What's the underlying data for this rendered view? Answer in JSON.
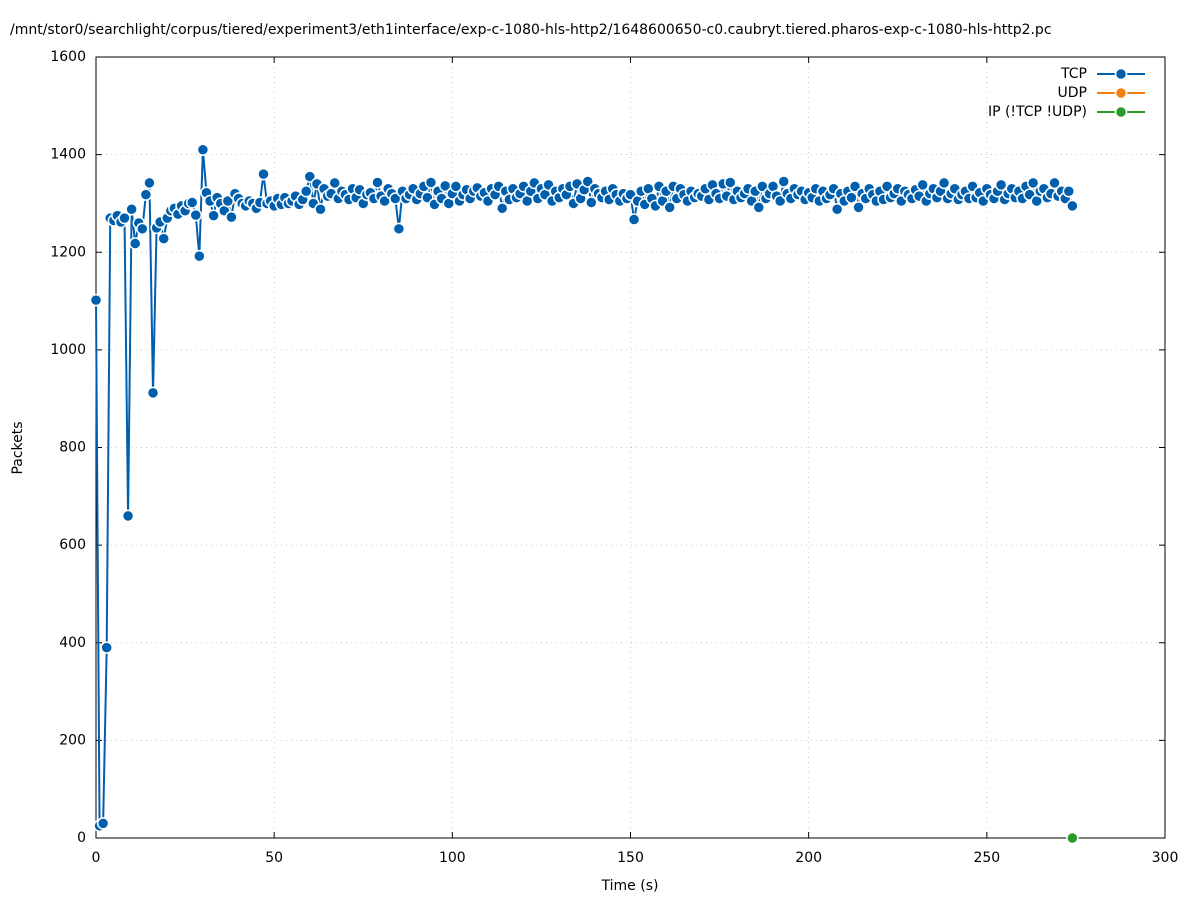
{
  "chart_data": {
    "type": "line",
    "title": "/mnt/stor0/searchlight/corpus/tiered/experiment3/eth1interface/exp-c-1080-hls-http2/1648600650-c0.caubryt.tiered.pharos-exp-c-1080-hls-http2.pc",
    "xlabel": "Time (s)",
    "ylabel": "Packets",
    "xlim": [
      0,
      300
    ],
    "xticks": [
      0,
      50,
      100,
      150,
      200,
      250,
      300
    ],
    "ylim": [
      0,
      1600
    ],
    "yticks": [
      0,
      200,
      400,
      600,
      800,
      1000,
      1200,
      1400,
      1600
    ],
    "grid": true,
    "legend": "top-right",
    "series": [
      {
        "name": "TCP",
        "color": "#005fad",
        "x": [
          0,
          1,
          2,
          3,
          4,
          5,
          6,
          7,
          8,
          9,
          10,
          11,
          12,
          13,
          14,
          15,
          16,
          17,
          18,
          19,
          20,
          21,
          22,
          23,
          24,
          25,
          26,
          27,
          28,
          29,
          30,
          31,
          32,
          33,
          34,
          35,
          36,
          37,
          38,
          39,
          40,
          41,
          42,
          43,
          44,
          45,
          46,
          47,
          48,
          49,
          50,
          51,
          52,
          53,
          54,
          55,
          56,
          57,
          58,
          59,
          60,
          61,
          62,
          63,
          64,
          65,
          66,
          67,
          68,
          69,
          70,
          71,
          72,
          73,
          74,
          75,
          76,
          77,
          78,
          79,
          80,
          81,
          82,
          83,
          84,
          85,
          86,
          87,
          88,
          89,
          90,
          91,
          92,
          93,
          94,
          95,
          96,
          97,
          98,
          99,
          100,
          101,
          102,
          103,
          104,
          105,
          106,
          107,
          108,
          109,
          110,
          111,
          112,
          113,
          114,
          115,
          116,
          117,
          118,
          119,
          120,
          121,
          122,
          123,
          124,
          125,
          126,
          127,
          128,
          129,
          130,
          131,
          132,
          133,
          134,
          135,
          136,
          137,
          138,
          139,
          140,
          141,
          142,
          143,
          144,
          145,
          146,
          147,
          148,
          149,
          150,
          151,
          152,
          153,
          154,
          155,
          156,
          157,
          158,
          159,
          160,
          161,
          162,
          163,
          164,
          165,
          166,
          167,
          168,
          169,
          170,
          171,
          172,
          173,
          174,
          175,
          176,
          177,
          178,
          179,
          180,
          181,
          182,
          183,
          184,
          185,
          186,
          187,
          188,
          189,
          190,
          191,
          192,
          193,
          194,
          195,
          196,
          197,
          198,
          199,
          200,
          201,
          202,
          203,
          204,
          205,
          206,
          207,
          208,
          209,
          210,
          211,
          212,
          213,
          214,
          215,
          216,
          217,
          218,
          219,
          220,
          221,
          222,
          223,
          224,
          225,
          226,
          227,
          228,
          229,
          230,
          231,
          232,
          233,
          234,
          235,
          236,
          237,
          238,
          239,
          240,
          241,
          242,
          243,
          244,
          245,
          246,
          247,
          248,
          249,
          250,
          251,
          252,
          253,
          254,
          255,
          256,
          257,
          258,
          259,
          260,
          261,
          262,
          263,
          264,
          265,
          266,
          267,
          268,
          269,
          270,
          271,
          272,
          273,
          274
        ],
        "values": [
          1102,
          25,
          30,
          390,
          1270,
          1265,
          1275,
          1262,
          1270,
          660,
          1288,
          1218,
          1260,
          1248,
          1318,
          1342,
          912,
          1250,
          1262,
          1228,
          1270,
          1285,
          1290,
          1278,
          1295,
          1285,
          1300,
          1302,
          1276,
          1192,
          1410,
          1322,
          1305,
          1275,
          1312,
          1300,
          1285,
          1305,
          1272,
          1320,
          1310,
          1300,
          1295,
          1305,
          1300,
          1290,
          1302,
          1360,
          1300,
          1305,
          1295,
          1310,
          1298,
          1312,
          1300,
          1305,
          1315,
          1298,
          1308,
          1325,
          1355,
          1300,
          1340,
          1288,
          1330,
          1315,
          1320,
          1342,
          1310,
          1325,
          1318,
          1308,
          1330,
          1312,
          1328,
          1300,
          1318,
          1322,
          1310,
          1343,
          1315,
          1305,
          1330,
          1320,
          1310,
          1248,
          1325,
          1310,
          1318,
          1330,
          1308,
          1320,
          1335,
          1312,
          1343,
          1298,
          1325,
          1310,
          1336,
          1300,
          1320,
          1335,
          1305,
          1318,
          1328,
          1310,
          1325,
          1332,
          1315,
          1322,
          1305,
          1330,
          1318,
          1335,
          1290,
          1325,
          1308,
          1330,
          1312,
          1320,
          1335,
          1305,
          1325,
          1342,
          1310,
          1330,
          1318,
          1338,
          1305,
          1325,
          1312,
          1330,
          1318,
          1335,
          1300,
          1340,
          1310,
          1328,
          1345,
          1302,
          1330,
          1320,
          1312,
          1325,
          1308,
          1330,
          1318,
          1305,
          1320,
          1310,
          1318,
          1267,
          1305,
          1325,
          1298,
          1330,
          1310,
          1295,
          1335,
          1305,
          1325,
          1292,
          1335,
          1310,
          1330,
          1318,
          1305,
          1325,
          1312,
          1320,
          1315,
          1330,
          1308,
          1338,
          1320,
          1310,
          1340,
          1315,
          1343,
          1308,
          1325,
          1312,
          1320,
          1330,
          1305,
          1325,
          1292,
          1335,
          1310,
          1320,
          1335,
          1315,
          1305,
          1345,
          1320,
          1310,
          1330,
          1318,
          1325,
          1308,
          1322,
          1312,
          1330,
          1305,
          1325,
          1310,
          1318,
          1330,
          1288,
          1320,
          1305,
          1325,
          1312,
          1335,
          1292,
          1320,
          1310,
          1330,
          1318,
          1305,
          1325,
          1308,
          1335,
          1312,
          1320,
          1330,
          1305,
          1325,
          1318,
          1310,
          1328,
          1315,
          1338,
          1305,
          1320,
          1330,
          1312,
          1325,
          1342,
          1310,
          1320,
          1330,
          1308,
          1318,
          1325,
          1310,
          1335,
          1312,
          1322,
          1305,
          1330,
          1318,
          1310,
          1325,
          1338,
          1308,
          1320,
          1330,
          1312,
          1325,
          1310,
          1335,
          1318,
          1342,
          1305,
          1325,
          1330,
          1312,
          1320,
          1342,
          1315,
          1325,
          1310,
          1325,
          1295
        ]
      },
      {
        "name": "UDP",
        "color": "#f07f0e",
        "x": [],
        "values": []
      },
      {
        "name": "IP (!TCP  !UDP)",
        "color": "#2a9a2a",
        "x": [
          274
        ],
        "values": [
          0
        ]
      }
    ]
  }
}
